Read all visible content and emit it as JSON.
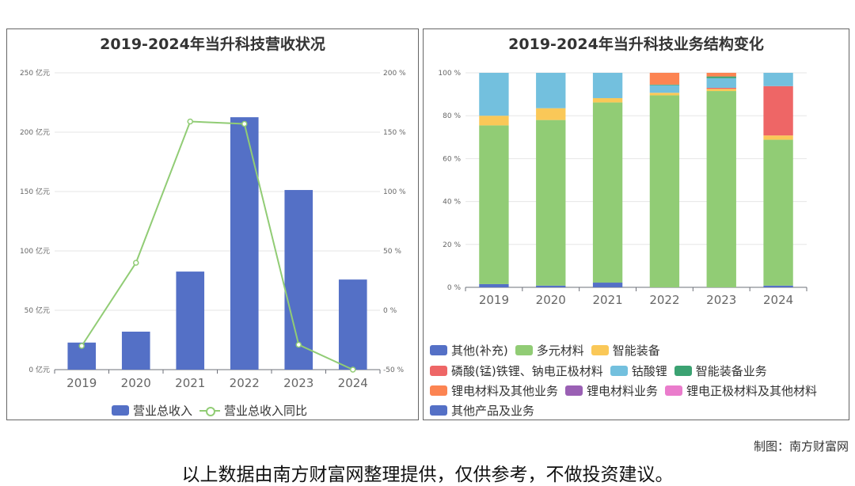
{
  "colors": {
    "revenue_bar": "#5470c6",
    "yoy_line": "#91cc75",
    "segments": [
      "#5470c6",
      "#91cc75",
      "#fac858",
      "#ee6666",
      "#73c0de",
      "#3ba272",
      "#fc8452",
      "#9a60b4",
      "#ea7ccc",
      "#5470c6"
    ]
  },
  "footer": {
    "credit": "制图：南方财富网",
    "disclaimer": "以上数据由南方财富网整理提供，仅供参考，不做投资建议。"
  },
  "chart_data": [
    {
      "type": "bar",
      "title": "2019-2024年当升科技营收状况",
      "categories": [
        "2019",
        "2020",
        "2021",
        "2022",
        "2023",
        "2024"
      ],
      "left_axis": {
        "ticks": [
          "0 亿元",
          "50 亿元",
          "100 亿元",
          "150 亿元",
          "200 亿元",
          "250 亿元"
        ],
        "ylim": [
          0,
          250
        ]
      },
      "right_axis": {
        "ticks": [
          "-50 %",
          "0 %",
          "50 %",
          "100 %",
          "150 %",
          "200 %"
        ],
        "ylim": [
          -50,
          200
        ]
      },
      "series": [
        {
          "name": "营业总收入",
          "type": "bar",
          "axis": "left",
          "values": [
            22.8,
            32,
            82.6,
            212.6,
            151.3,
            75.9
          ]
        },
        {
          "name": "营业总收入同比",
          "type": "line",
          "axis": "right",
          "values": [
            -30,
            40,
            159,
            157,
            -29,
            -50
          ]
        }
      ]
    },
    {
      "type": "bar",
      "stacked": true,
      "title": "2019-2024年当升科技业务结构变化",
      "categories": [
        "2019",
        "2020",
        "2021",
        "2022",
        "2023",
        "2024"
      ],
      "y_ticks": [
        "0 %",
        "20 %",
        "40 %",
        "60 %",
        "80 %",
        "100 %"
      ],
      "ylim": [
        0,
        100
      ],
      "series": [
        {
          "name": "其他(补充)",
          "values": [
            1.5,
            0.8,
            2.2,
            0,
            0,
            0.8
          ]
        },
        {
          "name": "多元材料",
          "values": [
            74.0,
            77.2,
            84.0,
            89.5,
            91.5,
            68.0
          ]
        },
        {
          "name": "智能装备",
          "values": [
            4.5,
            5.5,
            2.0,
            1.2,
            1.0,
            2.0
          ]
        },
        {
          "name": "磷酸(锰)铁锂、钠电正极材料",
          "values": [
            0,
            0,
            0,
            0,
            0.5,
            23.0
          ]
        },
        {
          "name": "钴酸锂",
          "values": [
            20.0,
            16.5,
            11.8,
            3.5,
            4.5,
            6.2
          ]
        },
        {
          "name": "智能装备业务",
          "values": [
            0,
            0,
            0,
            0.3,
            0.8,
            0
          ]
        },
        {
          "name": "锂电材料及其他业务",
          "values": [
            0,
            0,
            0,
            5.5,
            1.7,
            0
          ]
        },
        {
          "name": "锂电材料业务",
          "values": [
            0,
            0,
            0,
            0,
            0,
            0
          ]
        },
        {
          "name": "锂电正极材料及其他材料",
          "values": [
            0,
            0,
            0,
            0,
            0,
            0
          ]
        },
        {
          "name": "其他产品及业务",
          "values": [
            0,
            0,
            0,
            0,
            0,
            0
          ]
        }
      ]
    }
  ]
}
